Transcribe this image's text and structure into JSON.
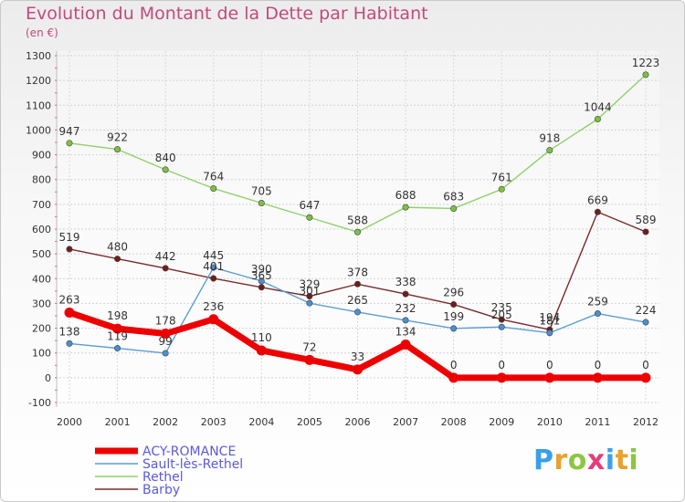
{
  "title": "Evolution du Montant de la Dette par Habitant",
  "subtitle": "(en €)",
  "logo": {
    "text": "Proxiti",
    "letter_colors": [
      "#3aa0e6",
      "#e9a12f",
      "#8cc63f",
      "#e63c7d",
      "#3aa0e6",
      "#e9a12f",
      "#8cc63f"
    ]
  },
  "chart_data": {
    "type": "line",
    "x": [
      "2000",
      "2001",
      "2002",
      "2003",
      "2004",
      "2005",
      "2006",
      "2007",
      "2008",
      "2009",
      "2010",
      "2011",
      "2012"
    ],
    "ylim": [
      -100,
      1300
    ],
    "yticks": [
      -100,
      0,
      100,
      200,
      300,
      400,
      500,
      600,
      700,
      800,
      900,
      1000,
      1100,
      1200,
      1300
    ],
    "grid": true,
    "legend": "bottom-left",
    "series": [
      {
        "name": "Rethel",
        "color": "#8fd16a",
        "marker": "#7cc242",
        "values": [
          947,
          922,
          840,
          764,
          705,
          647,
          588,
          688,
          683,
          761,
          918,
          1044,
          1223
        ]
      },
      {
        "name": "Barby",
        "color": "#7a2a2a",
        "marker": "#6e1e1e",
        "values": [
          519,
          480,
          442,
          401,
          365,
          329,
          378,
          338,
          296,
          235,
          194,
          669,
          589
        ]
      },
      {
        "name": "Sault-lès-Rethel",
        "color": "#5a9ed6",
        "marker": "#4a8fd0",
        "values": [
          138,
          119,
          99,
          445,
          390,
          301,
          265,
          232,
          199,
          205,
          181,
          259,
          224
        ]
      },
      {
        "name": "ACY-ROMANCE",
        "color": "#ee0000",
        "marker": "#ee0000",
        "bold": true,
        "values": [
          263,
          198,
          178,
          236,
          110,
          72,
          33,
          134,
          0,
          0,
          0,
          0,
          0
        ]
      }
    ],
    "legend_order": [
      "ACY-ROMANCE",
      "Sault-lès-Rethel",
      "Rethel",
      "Barby"
    ]
  }
}
